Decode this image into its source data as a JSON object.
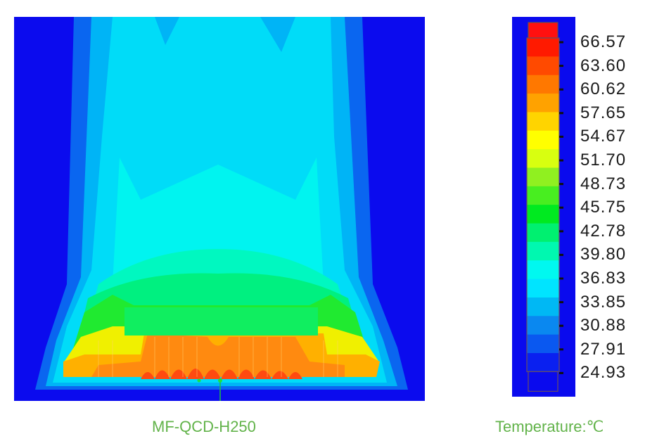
{
  "figure": {
    "caption": "MF-QCD-H250"
  },
  "legend": {
    "title": "Temperature:℃",
    "ticks": [
      "66.57",
      "63.60",
      "60.62",
      "57.65",
      "54.67",
      "51.70",
      "48.73",
      "45.75",
      "42.78",
      "39.80",
      "36.83",
      "33.85",
      "30.88",
      "27.91",
      "24.93"
    ],
    "band_colors": [
      "#ff1010",
      "#ff1a00",
      "#ff4a00",
      "#ff7800",
      "#ffa200",
      "#ffd400",
      "#ffff00",
      "#d8ff10",
      "#90f020",
      "#48ee20",
      "#00ea20",
      "#00f070",
      "#00f8b0",
      "#00f8f0",
      "#00e4ff",
      "#00b8f4",
      "#0a88f0",
      "#0a58f0",
      "#0a20f0"
    ],
    "background_color": "#0a0aee"
  }
}
